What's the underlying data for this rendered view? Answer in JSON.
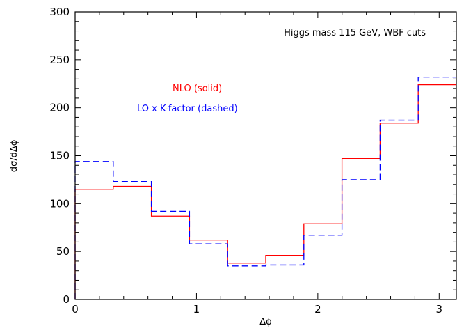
{
  "chart_data": {
    "type": "line",
    "step": true,
    "annotation": "Higgs mass 115 GeV, WBF cuts",
    "xlabel": "Δϕ",
    "ylabel": "dσ/dΔϕ",
    "xlim": [
      0,
      3.14159
    ],
    "ylim": [
      0,
      300
    ],
    "x_ticks": [
      0,
      1,
      2,
      3
    ],
    "y_ticks": [
      0,
      50,
      100,
      150,
      200,
      250,
      300
    ],
    "x_tick_labels": [
      "0",
      "1",
      "2",
      "3"
    ],
    "y_tick_labels": [
      "0",
      "50",
      "100",
      "150",
      "200",
      "250",
      "300"
    ],
    "bin_edges": [
      0,
      0.31416,
      0.62832,
      0.94248,
      1.25664,
      1.5708,
      1.88496,
      2.19911,
      2.51327,
      2.82743,
      3.14159
    ],
    "series": [
      {
        "name": "NLO (solid)",
        "color": "#ff0000",
        "style": "solid",
        "values": [
          115,
          118,
          87,
          62,
          38,
          46,
          79,
          147,
          184,
          224
        ]
      },
      {
        "name": "LO x K-factor (dashed)",
        "color": "#0000ff",
        "style": "dashed",
        "values": [
          144,
          123,
          92,
          58,
          35,
          36,
          67,
          125,
          187,
          232
        ]
      }
    ]
  }
}
